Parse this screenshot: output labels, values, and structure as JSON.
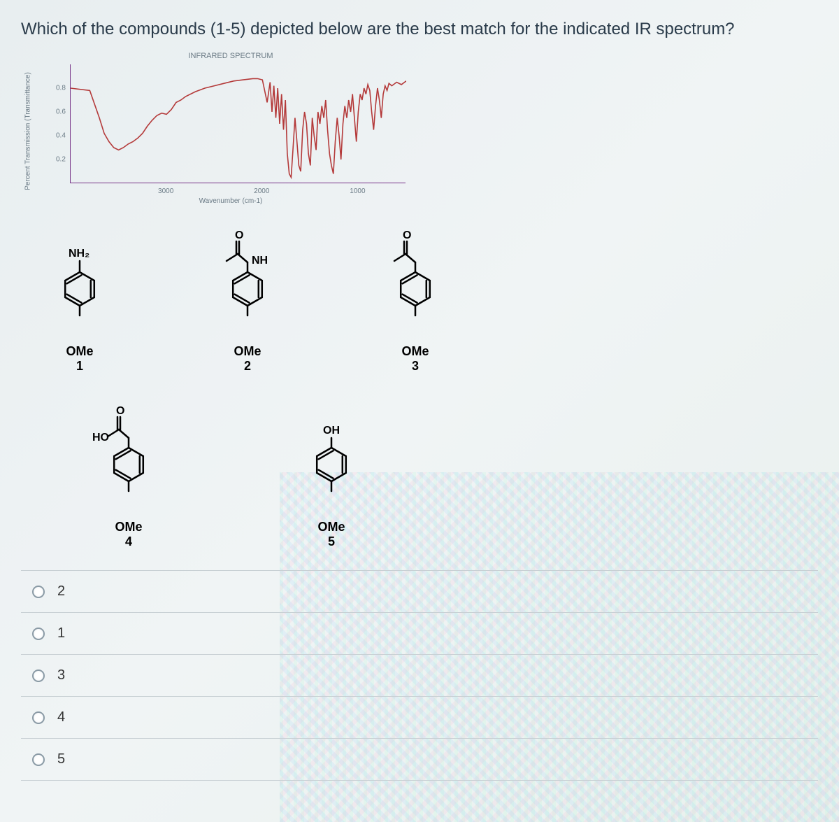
{
  "question": "Which of the compounds (1-5) depicted below are the best match for the indicated IR spectrum?",
  "chart": {
    "title": "INFRARED SPECTRUM",
    "ylabel": "Percent Transmission (Transmittance)",
    "xlabel": "Wavenumber (cm-1)",
    "xlim": [
      4000,
      500
    ],
    "ylim": [
      0,
      1.0
    ],
    "yticks": [
      0.2,
      0.4,
      0.6,
      0.8
    ],
    "xticks": [
      3000,
      2000,
      1000
    ],
    "line_color": "#b43a3a",
    "line_width": 1.6,
    "axis_color": "#6a5a8a",
    "background_color": "transparent",
    "label_fontsize": 10,
    "points": [
      [
        4000,
        0.8
      ],
      [
        3800,
        0.78
      ],
      [
        3700,
        0.55
      ],
      [
        3650,
        0.42
      ],
      [
        3600,
        0.35
      ],
      [
        3550,
        0.3
      ],
      [
        3500,
        0.28
      ],
      [
        3450,
        0.3
      ],
      [
        3400,
        0.33
      ],
      [
        3350,
        0.35
      ],
      [
        3300,
        0.38
      ],
      [
        3250,
        0.42
      ],
      [
        3200,
        0.48
      ],
      [
        3150,
        0.53
      ],
      [
        3100,
        0.57
      ],
      [
        3050,
        0.59
      ],
      [
        3000,
        0.58
      ],
      [
        2950,
        0.62
      ],
      [
        2900,
        0.68
      ],
      [
        2850,
        0.7
      ],
      [
        2800,
        0.73
      ],
      [
        2700,
        0.77
      ],
      [
        2600,
        0.8
      ],
      [
        2500,
        0.82
      ],
      [
        2400,
        0.84
      ],
      [
        2300,
        0.86
      ],
      [
        2200,
        0.87
      ],
      [
        2100,
        0.88
      ],
      [
        2050,
        0.88
      ],
      [
        2000,
        0.87
      ],
      [
        1950,
        0.68
      ],
      [
        1920,
        0.85
      ],
      [
        1900,
        0.6
      ],
      [
        1880,
        0.82
      ],
      [
        1860,
        0.55
      ],
      [
        1840,
        0.8
      ],
      [
        1820,
        0.5
      ],
      [
        1800,
        0.75
      ],
      [
        1780,
        0.45
      ],
      [
        1760,
        0.7
      ],
      [
        1740,
        0.25
      ],
      [
        1720,
        0.08
      ],
      [
        1700,
        0.05
      ],
      [
        1680,
        0.3
      ],
      [
        1660,
        0.55
      ],
      [
        1640,
        0.35
      ],
      [
        1620,
        0.15
      ],
      [
        1600,
        0.1
      ],
      [
        1580,
        0.45
      ],
      [
        1560,
        0.6
      ],
      [
        1540,
        0.5
      ],
      [
        1520,
        0.25
      ],
      [
        1500,
        0.15
      ],
      [
        1480,
        0.55
      ],
      [
        1460,
        0.4
      ],
      [
        1440,
        0.28
      ],
      [
        1420,
        0.6
      ],
      [
        1400,
        0.5
      ],
      [
        1380,
        0.65
      ],
      [
        1360,
        0.55
      ],
      [
        1340,
        0.7
      ],
      [
        1320,
        0.45
      ],
      [
        1300,
        0.25
      ],
      [
        1280,
        0.15
      ],
      [
        1260,
        0.08
      ],
      [
        1240,
        0.35
      ],
      [
        1220,
        0.55
      ],
      [
        1200,
        0.4
      ],
      [
        1180,
        0.2
      ],
      [
        1160,
        0.5
      ],
      [
        1140,
        0.65
      ],
      [
        1120,
        0.55
      ],
      [
        1100,
        0.7
      ],
      [
        1080,
        0.6
      ],
      [
        1060,
        0.75
      ],
      [
        1040,
        0.55
      ],
      [
        1020,
        0.35
      ],
      [
        1000,
        0.6
      ],
      [
        980,
        0.75
      ],
      [
        960,
        0.7
      ],
      [
        940,
        0.8
      ],
      [
        920,
        0.75
      ],
      [
        900,
        0.83
      ],
      [
        880,
        0.78
      ],
      [
        860,
        0.6
      ],
      [
        840,
        0.45
      ],
      [
        820,
        0.65
      ],
      [
        800,
        0.8
      ],
      [
        780,
        0.7
      ],
      [
        760,
        0.55
      ],
      [
        740,
        0.75
      ],
      [
        720,
        0.82
      ],
      [
        700,
        0.78
      ],
      [
        680,
        0.84
      ],
      [
        650,
        0.82
      ],
      [
        600,
        0.85
      ],
      [
        550,
        0.83
      ],
      [
        500,
        0.86
      ]
    ]
  },
  "molecules": {
    "row1": [
      {
        "top_label": "NH₂",
        "bottom_label": "OMe",
        "number": "1",
        "type": "aniline"
      },
      {
        "top_label": "NH",
        "bottom_label": "OMe",
        "number": "2",
        "type": "amide"
      },
      {
        "top_label": "",
        "bottom_label": "OMe",
        "number": "3",
        "type": "ketone"
      }
    ],
    "row2": [
      {
        "top_label": "HO",
        "bottom_label": "OMe",
        "number": "4",
        "type": "acid"
      },
      {
        "top_label": "OH",
        "bottom_label": "OMe",
        "number": "5",
        "type": "phenol"
      }
    ]
  },
  "options": [
    "2",
    "1",
    "3",
    "4",
    "5"
  ],
  "colors": {
    "text": "#2a3b4a",
    "divider": "#c8d0d4",
    "radio_border": "#8a9aa5",
    "mol_stroke": "#000000"
  }
}
